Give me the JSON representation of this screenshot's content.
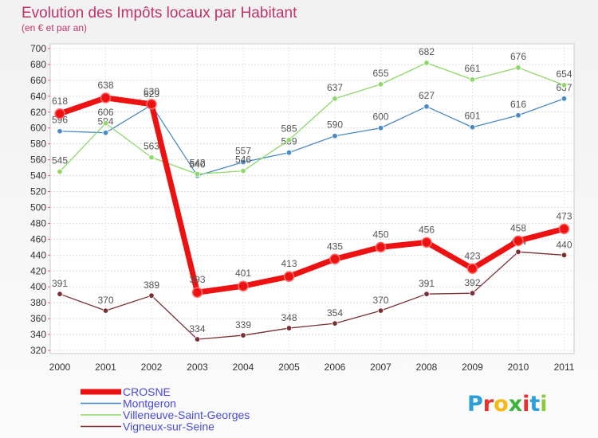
{
  "title": "Evolution des Impôts locaux par Habitant",
  "subtitle": "(en € et par an)",
  "logo": {
    "text": "Proxiti",
    "letter_colors": [
      "#2a9fd8",
      "#e8302e",
      "#f5b815",
      "#3bb33b",
      "#e8302e",
      "#2a9fd8",
      "#8dc63f"
    ]
  },
  "chart_data": {
    "type": "line",
    "title": "Evolution des Impôts locaux par Habitant",
    "subtitle": "(en € et par an)",
    "xlabel": "",
    "ylabel": "",
    "x": [
      "2000",
      "2001",
      "2002",
      "2003",
      "2004",
      "2005",
      "2006",
      "2007",
      "2008",
      "2009",
      "2010",
      "2011"
    ],
    "ylim": [
      320,
      700
    ],
    "yticks": [
      320,
      340,
      360,
      380,
      400,
      420,
      440,
      460,
      480,
      500,
      520,
      540,
      560,
      580,
      600,
      620,
      640,
      660,
      680,
      700
    ],
    "grid": true,
    "legend_position": "bottom-left",
    "series": [
      {
        "name": "Montgeron",
        "color": "#4a8ac4",
        "values": [
          596,
          594,
          629,
          540,
          557,
          569,
          590,
          600,
          627,
          601,
          616,
          637
        ]
      },
      {
        "name": "Villeneuve-Saint-Georges",
        "color": "#8ed86a",
        "values": [
          545,
          606,
          563,
          542,
          546,
          585,
          637,
          655,
          682,
          661,
          676,
          654
        ]
      },
      {
        "name": "Vigneux-sur-Seine",
        "color": "#7a2f33",
        "values": [
          391,
          370,
          389,
          334,
          339,
          348,
          354,
          370,
          391,
          392,
          444,
          440
        ]
      },
      {
        "name": "CROSNE",
        "color": "#ee1111",
        "values": [
          618,
          638,
          630,
          393,
          401,
          413,
          435,
          450,
          456,
          423,
          458,
          473
        ]
      }
    ],
    "legend_order": [
      "CROSNE",
      "Montgeron",
      "Villeneuve-Saint-Georges",
      "Vigneux-sur-Seine"
    ]
  }
}
